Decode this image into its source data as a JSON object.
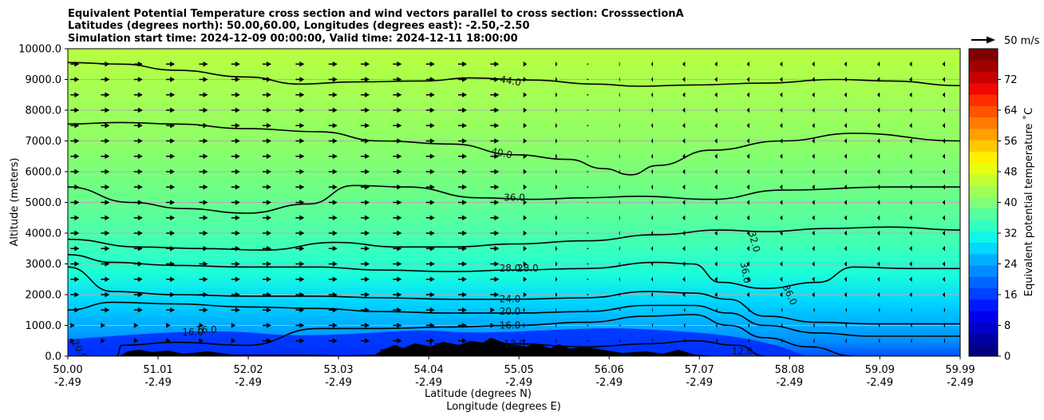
{
  "chart_data": {
    "type": "contour",
    "title_lines": [
      "Equivalent Potential Temperature cross section and wind vectors parallel to cross section: CrosssectionA",
      "Latitudes (degrees north): 50.00,60.00, Longitudes (degrees east): -2.50,-2.50",
      "Simulation start time: 2024-12-09 00:00:00, Valid time: 2024-12-11 18:00:00"
    ],
    "xlabel_lat": "Latitude (degrees N)",
    "xlabel_lon": "Longitude (degrees E)",
    "ylabel": "Altitude (meters)",
    "xlim": [
      50.0,
      59.99
    ],
    "ylim": [
      0,
      10000
    ],
    "x_ticks": [
      {
        "value": 50.0,
        "lat": "50.00",
        "lon": "-2.49"
      },
      {
        "value": 51.01,
        "lat": "51.01",
        "lon": "-2.49"
      },
      {
        "value": 52.02,
        "lat": "52.02",
        "lon": "-2.49"
      },
      {
        "value": 53.03,
        "lat": "53.03",
        "lon": "-2.49"
      },
      {
        "value": 54.04,
        "lat": "54.04",
        "lon": "-2.49"
      },
      {
        "value": 55.05,
        "lat": "55.05",
        "lon": "-2.49"
      },
      {
        "value": 56.06,
        "lat": "56.06",
        "lon": "-2.49"
      },
      {
        "value": 57.07,
        "lat": "57.07",
        "lon": "-2.49"
      },
      {
        "value": 58.08,
        "lat": "58.08",
        "lon": "-2.49"
      },
      {
        "value": 59.09,
        "lat": "59.09",
        "lon": "-2.49"
      },
      {
        "value": 59.99,
        "lat": "59.99",
        "lon": "-2.49"
      }
    ],
    "y_ticks": [
      {
        "value": 0,
        "label": "0.0"
      },
      {
        "value": 1000,
        "label": "1000.0"
      },
      {
        "value": 2000,
        "label": "2000.0"
      },
      {
        "value": 3000,
        "label": "3000.0"
      },
      {
        "value": 4000,
        "label": "4000.0"
      },
      {
        "value": 5000,
        "label": "5000.0"
      },
      {
        "value": 6000,
        "label": "6000.0"
      },
      {
        "value": 7000,
        "label": "7000.0"
      },
      {
        "value": 8000,
        "label": "8000.0"
      },
      {
        "value": 9000,
        "label": "9000.0"
      },
      {
        "value": 10000,
        "label": "10000.0"
      }
    ],
    "colorbar": {
      "label": "Equivalent potential temperature ˚C",
      "min": 0,
      "max": 80,
      "ticks": [
        "0",
        "8",
        "16",
        "24",
        "32",
        "40",
        "48",
        "56",
        "64",
        "72"
      ],
      "colors": [
        "#00007f",
        "#00009f",
        "#0000c8",
        "#0000f0",
        "#0018ff",
        "#0040ff",
        "#0064ff",
        "#008cff",
        "#00b0ff",
        "#00d8ff",
        "#0ff8e6",
        "#33ffc3",
        "#56ffa0",
        "#7fff7a",
        "#a0ff56",
        "#c3ff33",
        "#e6ff0f",
        "#fff000",
        "#ffc800",
        "#ffa000",
        "#ff7c00",
        "#ff5400",
        "#ff2c00",
        "#f00800",
        "#c80000",
        "#9f0000",
        "#7f0000"
      ]
    },
    "quiver_key": "50 m/s",
    "contours": [
      {
        "level": 44,
        "label": "44.0",
        "points": [
          [
            50.0,
            9550
          ],
          [
            50.6,
            9500
          ],
          [
            51.2,
            9300
          ],
          [
            52.0,
            9080
          ],
          [
            52.6,
            8850
          ],
          [
            53.2,
            8920
          ],
          [
            54.0,
            8950
          ],
          [
            54.5,
            9050
          ],
          [
            55.2,
            8980
          ],
          [
            55.9,
            8850
          ],
          [
            56.4,
            8780
          ],
          [
            57.0,
            8820
          ],
          [
            57.8,
            8880
          ],
          [
            58.6,
            9000
          ],
          [
            59.2,
            8950
          ],
          [
            59.99,
            8800
          ]
        ]
      },
      {
        "level": 40,
        "label": "40.0",
        "points": [
          [
            50.0,
            7550
          ],
          [
            50.6,
            7600
          ],
          [
            51.2,
            7550
          ],
          [
            52.0,
            7400
          ],
          [
            52.8,
            7300
          ],
          [
            53.5,
            7000
          ],
          [
            54.3,
            6900
          ],
          [
            55.0,
            6550
          ],
          [
            55.6,
            6400
          ],
          [
            56.0,
            6100
          ],
          [
            56.3,
            5900
          ],
          [
            56.6,
            6200
          ],
          [
            57.2,
            6700
          ],
          [
            58.0,
            7000
          ],
          [
            58.8,
            7250
          ],
          [
            59.99,
            7000
          ]
        ]
      },
      {
        "level": 36,
        "label": "36.0",
        "points": [
          [
            50.0,
            5500
          ],
          [
            50.7,
            5000
          ],
          [
            51.3,
            4800
          ],
          [
            52.0,
            4650
          ],
          [
            52.7,
            4950
          ],
          [
            53.2,
            5550
          ],
          [
            53.8,
            5500
          ],
          [
            54.6,
            5150
          ],
          [
            55.2,
            5100
          ],
          [
            55.8,
            5150
          ],
          [
            56.4,
            5200
          ],
          [
            57.2,
            5100
          ],
          [
            58.0,
            5400
          ],
          [
            59.2,
            5500
          ],
          [
            59.99,
            5500
          ]
        ]
      },
      {
        "level": 32,
        "label": "32.0",
        "points": [
          [
            50.0,
            3800
          ],
          [
            50.8,
            3550
          ],
          [
            51.5,
            3500
          ],
          [
            52.2,
            3450
          ],
          [
            53.0,
            3700
          ],
          [
            53.7,
            3550
          ],
          [
            54.3,
            3550
          ],
          [
            55.0,
            3650
          ],
          [
            55.8,
            3750
          ],
          [
            56.6,
            3950
          ],
          [
            57.3,
            4100
          ],
          [
            57.8,
            4050
          ],
          [
            58.5,
            4150
          ],
          [
            59.2,
            4200
          ],
          [
            59.99,
            4100
          ]
        ]
      },
      {
        "level": 28,
        "label": "28.0",
        "points": [
          [
            50.0,
            3300
          ],
          [
            50.5,
            3050
          ],
          [
            51.2,
            2950
          ],
          [
            52.0,
            2900
          ],
          [
            52.8,
            2900
          ],
          [
            53.5,
            2800
          ],
          [
            54.3,
            2750
          ],
          [
            55.0,
            2800
          ],
          [
            55.8,
            2850
          ],
          [
            56.6,
            3050
          ],
          [
            57.0,
            3000
          ],
          [
            57.3,
            2400
          ],
          [
            57.8,
            2200
          ],
          [
            58.4,
            2400
          ],
          [
            58.8,
            2900
          ],
          [
            59.4,
            2850
          ],
          [
            59.99,
            2850
          ]
        ]
      },
      {
        "level": 24,
        "label": "24.0",
        "points": [
          [
            50.0,
            2900
          ],
          [
            50.5,
            2100
          ],
          [
            51.2,
            2000
          ],
          [
            52.0,
            1950
          ],
          [
            52.8,
            1950
          ],
          [
            53.5,
            1900
          ],
          [
            54.3,
            1850
          ],
          [
            55.0,
            1850
          ],
          [
            55.8,
            1900
          ],
          [
            56.5,
            2100
          ],
          [
            57.0,
            2050
          ],
          [
            57.4,
            1850
          ],
          [
            57.8,
            1300
          ],
          [
            58.4,
            1100
          ],
          [
            59.0,
            1050
          ],
          [
            59.99,
            1050
          ]
        ]
      },
      {
        "level": 20,
        "label": "20.0",
        "points": [
          [
            50.0,
            1500
          ],
          [
            50.5,
            1750
          ],
          [
            51.2,
            1700
          ],
          [
            52.0,
            1600
          ],
          [
            52.8,
            1550
          ],
          [
            53.5,
            1450
          ],
          [
            54.3,
            1400
          ],
          [
            55.0,
            1400
          ],
          [
            55.8,
            1450
          ],
          [
            56.5,
            1650
          ],
          [
            57.0,
            1650
          ],
          [
            57.4,
            1400
          ],
          [
            57.8,
            1000
          ],
          [
            58.4,
            750
          ],
          [
            59.0,
            650
          ],
          [
            59.99,
            650
          ]
        ]
      },
      {
        "level": 16,
        "label": "16.0",
        "points": [
          [
            50.55,
            0
          ],
          [
            50.6,
            350
          ],
          [
            51.2,
            450
          ],
          [
            52.0,
            350
          ],
          [
            52.8,
            900
          ],
          [
            53.5,
            900
          ],
          [
            54.3,
            950
          ],
          [
            55.0,
            1000
          ],
          [
            55.8,
            1100
          ],
          [
            56.5,
            1300
          ],
          [
            57.0,
            1350
          ],
          [
            57.4,
            1000
          ],
          [
            57.8,
            600
          ],
          [
            58.3,
            300
          ],
          [
            58.8,
            0
          ]
        ]
      },
      {
        "level": 12,
        "label": "12.0",
        "points": [
          [
            53.5,
            200
          ],
          [
            54.3,
            300
          ],
          [
            55.0,
            400
          ],
          [
            55.8,
            300
          ],
          [
            56.5,
            400
          ],
          [
            57.0,
            500
          ],
          [
            57.5,
            350
          ],
          [
            57.8,
            0
          ]
        ]
      }
    ],
    "contour_labels": [
      {
        "text": "44.0",
        "x": 54.95,
        "y": 8850,
        "rot": 10
      },
      {
        "text": "40.0",
        "x": 54.85,
        "y": 6500,
        "rot": 12
      },
      {
        "text": "36.0",
        "x": 55.0,
        "y": 5050,
        "rot": 0
      },
      {
        "text": "28.0",
        "x": 54.95,
        "y": 2750,
        "rot": 0
      },
      {
        "text": "28.0",
        "x": 55.15,
        "y": 2750,
        "rot": 0
      },
      {
        "text": "24.0",
        "x": 54.95,
        "y": 1750,
        "rot": 0
      },
      {
        "text": "20.0",
        "x": 54.95,
        "y": 1350,
        "rot": 0
      },
      {
        "text": "16.0",
        "x": 54.95,
        "y": 900,
        "rot": 0
      },
      {
        "text": "16.0",
        "x": 51.4,
        "y": 680,
        "rot": 0
      },
      {
        "text": "16.0",
        "x": 51.55,
        "y": 750,
        "rot": 0
      },
      {
        "text": "20.0",
        "x": 50.1,
        "y": 150,
        "rot": 60
      },
      {
        "text": "12.0",
        "x": 55.0,
        "y": 300,
        "rot": 0
      },
      {
        "text": "12.0",
        "x": 54.15,
        "y": 200,
        "rot": 0
      },
      {
        "text": "12.0",
        "x": 57.55,
        "y": 50,
        "rot": 0
      },
      {
        "text": "32.0",
        "x": 57.65,
        "y": 3700,
        "rot": 75
      },
      {
        "text": "36.0",
        "x": 57.55,
        "y": 2700,
        "rot": 80
      },
      {
        "text": "36.0",
        "x": 58.05,
        "y": 1950,
        "rot": 65
      }
    ],
    "wind_vectors": {
      "x": [
        50.03,
        50.37,
        50.74,
        51.1,
        51.47,
        51.83,
        52.18,
        52.55,
        52.92,
        53.28,
        53.64,
        54.01,
        54.37,
        54.73,
        55.1,
        55.46,
        55.82,
        56.18,
        56.55,
        56.91,
        57.27,
        57.63,
        58.0,
        58.36,
        58.72,
        59.09,
        59.45,
        59.82
      ],
      "y": [
        9500,
        9000,
        8500,
        8000,
        7500,
        7000,
        6500,
        6000,
        5500,
        5000,
        4500,
        4000,
        3500,
        3000,
        2500,
        2000,
        1500,
        1000,
        500
      ],
      "u_profile": [
        20,
        20,
        20,
        20,
        20,
        20,
        20,
        20,
        20,
        20,
        20,
        20,
        20,
        20,
        8,
        4,
        0,
        -2,
        -4,
        -6,
        -6,
        -6,
        -6,
        -6,
        -6,
        -6,
        -6,
        -6
      ]
    }
  }
}
